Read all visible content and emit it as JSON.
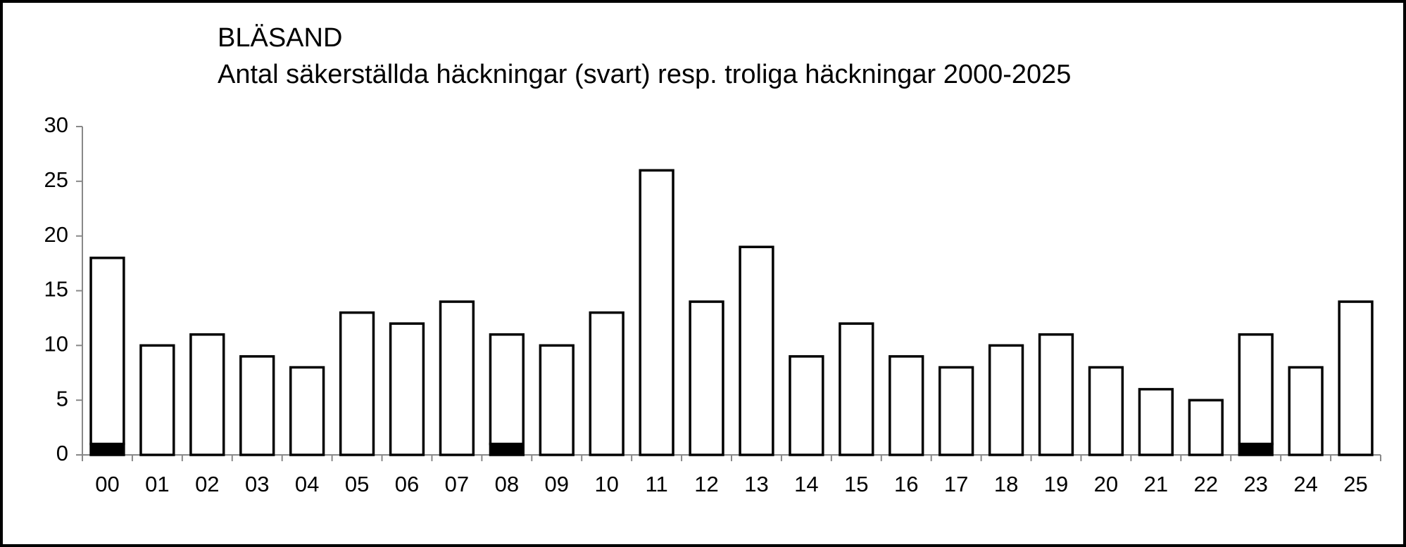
{
  "chart_data": {
    "type": "stacked_bar",
    "title": "BLÄSAND",
    "subtitle": "Antal säkerställda häckningar (svart) resp. troliga häckningar 2000-2025",
    "categories": [
      "00",
      "01",
      "02",
      "03",
      "04",
      "05",
      "06",
      "07",
      "08",
      "09",
      "10",
      "11",
      "12",
      "13",
      "14",
      "15",
      "16",
      "17",
      "18",
      "19",
      "20",
      "21",
      "22",
      "23",
      "24",
      "25"
    ],
    "series": [
      {
        "color": "#000000",
        "values": [
          1,
          0,
          0,
          0,
          0,
          0,
          0,
          0,
          1,
          0,
          0,
          0,
          0,
          0,
          0,
          0,
          0,
          0,
          0,
          0,
          0,
          0,
          0,
          1,
          0,
          0
        ]
      },
      {
        "color": "#ffffff",
        "values": [
          17,
          10,
          11,
          9,
          8,
          13,
          12,
          14,
          10,
          10,
          13,
          26,
          14,
          19,
          9,
          12,
          9,
          8,
          10,
          11,
          8,
          6,
          5,
          10,
          8,
          14
        ]
      }
    ],
    "ylim": [
      0,
      30
    ],
    "yticks": [
      0,
      5,
      10,
      15,
      20,
      25,
      30
    ],
    "grid": false
  }
}
